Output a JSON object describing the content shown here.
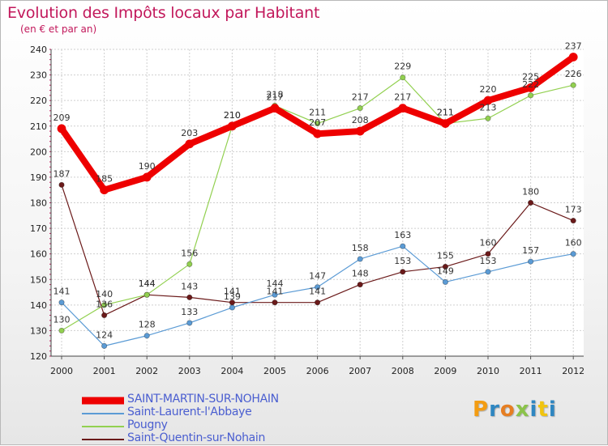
{
  "chart_data": {
    "type": "line",
    "title": "Evolution des Impôts locaux par Habitant",
    "subtitle": "(en € et par an)",
    "xlabel": "",
    "ylabel": "",
    "x": [
      "2000",
      "2001",
      "2002",
      "2003",
      "2004",
      "2005",
      "2006",
      "2007",
      "2008",
      "2009",
      "2010",
      "2011",
      "2012"
    ],
    "ylim": [
      120,
      240
    ],
    "yticks": [
      120,
      130,
      140,
      150,
      160,
      170,
      180,
      190,
      200,
      210,
      220,
      230,
      240
    ],
    "grid": true,
    "legend_position": "bottom-left",
    "series": [
      {
        "name": "SAINT-MARTIN-SUR-NOHAIN",
        "color": "#ee0000",
        "width": 8,
        "values": [
          209,
          185,
          190,
          203,
          210,
          217,
          207,
          208,
          217,
          211,
          220,
          225,
          237
        ]
      },
      {
        "name": "Saint-Laurent-l'Abbaye",
        "color": "#5b9bd5",
        "width": 1.2,
        "values": [
          141,
          124,
          128,
          133,
          139,
          144,
          147,
          158,
          163,
          149,
          153,
          157,
          160
        ]
      },
      {
        "name": "Pougny",
        "color": "#92d050",
        "width": 1.2,
        "values": [
          130,
          140,
          144,
          156,
          210,
          218,
          211,
          217,
          229,
          211,
          213,
          222,
          226
        ]
      },
      {
        "name": "Saint-Quentin-sur-Nohain",
        "color": "#6b1a1a",
        "width": 1.2,
        "values": [
          187,
          136,
          144,
          143,
          141,
          141,
          141,
          148,
          153,
          155,
          160,
          180,
          173
        ]
      }
    ]
  },
  "logo": {
    "text": "Proxiti",
    "colors": [
      "#f39c12",
      "#2e86c1",
      "#e67e22",
      "#8bc34a",
      "#2e86c1",
      "#f1c40f",
      "#2e86c1"
    ]
  }
}
